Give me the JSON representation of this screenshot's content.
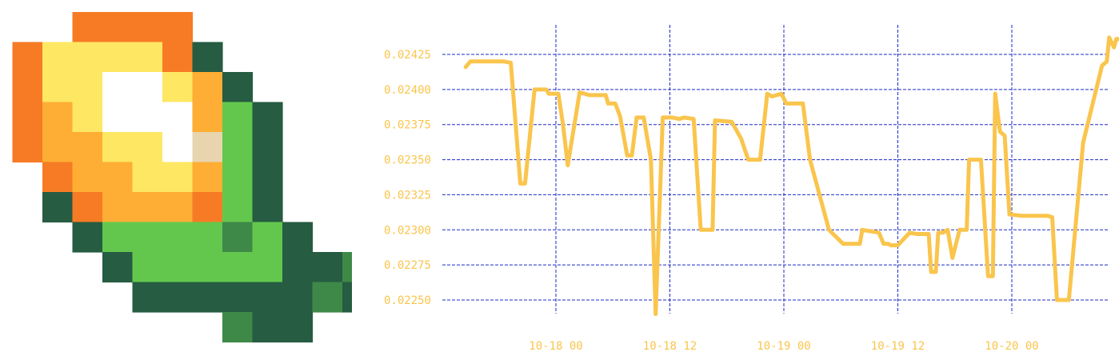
{
  "logo": {
    "icon": "pixel-corn-icon",
    "palette": {
      "o": "#f77b25",
      "y": "#fee762",
      "w": "#ffffff",
      "a": "#feae34",
      "c": "#e8d5b0",
      "g": "#63c74d",
      "d": "#265c42",
      "m": "#3e8948"
    },
    "grid": [
      "...oooo.....",
      ".oyyyyod....",
      ".oyywwyad...",
      ".oaywwwagd..",
      ".oaayywcgd..",
      "..oaayyagd..",
      "..doaaaogd..",
      "...dggggmgd.",
      "....dgggggddm",
      ".....ddddddmd",
      "........mdd.."
    ]
  },
  "chart_data": {
    "type": "line",
    "title": "",
    "xlabel": "",
    "ylabel": "",
    "line_color": "#fac54d",
    "grid_color": "#1d2bc6",
    "label_color": "#fac54d",
    "grid": true,
    "ylim": [
      0.02238,
      0.0245
    ],
    "xlim": [
      "2023-10-17 00:00",
      "2023-10-20 09:00"
    ],
    "x_ticks": [
      {
        "t": "2023-10-18 00:00",
        "label": "10-18 00"
      },
      {
        "t": "2023-10-18 12:00",
        "label": "10-18 12"
      },
      {
        "t": "2023-10-19 00:00",
        "label": "10-19 00"
      },
      {
        "t": "2023-10-19 12:00",
        "label": "10-19 12"
      },
      {
        "t": "2023-10-20 00:00",
        "label": "10-20 00"
      }
    ],
    "y_ticks": [
      {
        "v": 0.0225,
        "label": "0.02250"
      },
      {
        "v": 0.02275,
        "label": "0.02275"
      },
      {
        "v": 0.023,
        "label": "0.02300"
      },
      {
        "v": 0.02325,
        "label": "0.02325"
      },
      {
        "v": 0.0235,
        "label": "0.02350"
      },
      {
        "v": 0.02375,
        "label": "0.02375"
      },
      {
        "v": 0.024,
        "label": "0.02400"
      },
      {
        "v": 0.02425,
        "label": "0.02425"
      }
    ],
    "series": [
      {
        "points": [
          [
            "2023-10-17 14:30",
            0.02416
          ],
          [
            "2023-10-17 15:00",
            0.0242
          ],
          [
            "2023-10-17 18:30",
            0.0242
          ],
          [
            "2023-10-17 19:15",
            0.02419
          ],
          [
            "2023-10-17 20:15",
            0.02333
          ],
          [
            "2023-10-17 20:45",
            0.02333
          ],
          [
            "2023-10-17 21:45",
            0.024
          ],
          [
            "2023-10-17 23:00",
            0.024
          ],
          [
            "2023-10-17 23:15",
            0.02397
          ],
          [
            "2023-10-18 00:15",
            0.02397
          ],
          [
            "2023-10-18 00:45",
            0.02375
          ],
          [
            "2023-10-18 01:15",
            0.02346
          ],
          [
            "2023-10-18 02:30",
            0.02398
          ],
          [
            "2023-10-18 03:30",
            0.02396
          ],
          [
            "2023-10-18 05:15",
            0.02396
          ],
          [
            "2023-10-18 05:30",
            0.0239
          ],
          [
            "2023-10-18 06:15",
            0.0239
          ],
          [
            "2023-10-18 06:45",
            0.02381
          ],
          [
            "2023-10-18 07:30",
            0.02353
          ],
          [
            "2023-10-18 08:00",
            0.02353
          ],
          [
            "2023-10-18 08:30",
            0.0238
          ],
          [
            "2023-10-18 09:15",
            0.0238
          ],
          [
            "2023-10-18 10:00",
            0.0235
          ],
          [
            "2023-10-18 10:30",
            0.0224
          ],
          [
            "2023-10-18 11:15",
            0.0238
          ],
          [
            "2023-10-18 12:15",
            0.0238
          ],
          [
            "2023-10-18 13:00",
            0.02379
          ],
          [
            "2023-10-18 13:30",
            0.0238
          ],
          [
            "2023-10-18 14:30",
            0.02379
          ],
          [
            "2023-10-18 15:15",
            0.023
          ],
          [
            "2023-10-18 16:30",
            0.023
          ],
          [
            "2023-10-18 16:45",
            0.02378
          ],
          [
            "2023-10-18 18:30",
            0.02377
          ],
          [
            "2023-10-18 19:30",
            0.02365
          ],
          [
            "2023-10-18 19:45",
            0.0236
          ],
          [
            "2023-10-18 20:15",
            0.0235
          ],
          [
            "2023-10-18 21:30",
            0.0235
          ],
          [
            "2023-10-18 22:15",
            0.02397
          ],
          [
            "2023-10-18 22:45",
            0.02395
          ],
          [
            "2023-10-18 23:15",
            0.02396
          ],
          [
            "2023-10-18 23:45",
            0.02397
          ],
          [
            "2023-10-19 00:15",
            0.0239
          ],
          [
            "2023-10-19 02:00",
            0.0239
          ],
          [
            "2023-10-19 02:45",
            0.0235
          ],
          [
            "2023-10-19 04:45",
            0.023
          ],
          [
            "2023-10-19 06:15",
            0.0229
          ],
          [
            "2023-10-19 07:00",
            0.0229
          ],
          [
            "2023-10-19 08:00",
            0.0229
          ],
          [
            "2023-10-19 08:15",
            0.023
          ],
          [
            "2023-10-19 10:00",
            0.02298
          ],
          [
            "2023-10-19 10:30",
            0.0229
          ],
          [
            "2023-10-19 11:00",
            0.0229
          ],
          [
            "2023-10-19 11:15",
            0.02289
          ],
          [
            "2023-10-19 12:00",
            0.02289
          ],
          [
            "2023-10-19 13:15",
            0.02298
          ],
          [
            "2023-10-19 14:00",
            0.02297
          ],
          [
            "2023-10-19 15:15",
            0.02297
          ],
          [
            "2023-10-19 15:30",
            0.0227
          ],
          [
            "2023-10-19 16:00",
            0.0227
          ],
          [
            "2023-10-19 16:15",
            0.02298
          ],
          [
            "2023-10-19 16:45",
            0.02298
          ],
          [
            "2023-10-19 17:15",
            0.023
          ],
          [
            "2023-10-19 17:45",
            0.0228
          ],
          [
            "2023-10-19 18:30",
            0.023
          ],
          [
            "2023-10-19 19:15",
            0.023
          ],
          [
            "2023-10-19 19:30",
            0.0235
          ],
          [
            "2023-10-19 20:45",
            0.0235
          ],
          [
            "2023-10-19 21:30",
            0.02267
          ],
          [
            "2023-10-19 22:00",
            0.02267
          ],
          [
            "2023-10-19 22:15",
            0.02397
          ],
          [
            "2023-10-19 22:45",
            0.0237
          ],
          [
            "2023-10-19 23:15",
            0.02367
          ],
          [
            "2023-10-19 23:45",
            0.02311
          ],
          [
            "2023-10-20 01:00",
            0.0231
          ],
          [
            "2023-10-20 03:30",
            0.0231
          ],
          [
            "2023-10-20 03:45",
            0.0231
          ],
          [
            "2023-10-20 04:15",
            0.02309
          ],
          [
            "2023-10-20 04:45",
            0.0225
          ],
          [
            "2023-10-20 06:00",
            0.0225
          ],
          [
            "2023-10-20 07:30",
            0.02362
          ],
          [
            "2023-10-20 09:30",
            0.02417
          ],
          [
            "2023-10-20 10:00",
            0.0242
          ],
          [
            "2023-10-20 10:15",
            0.02437
          ],
          [
            "2023-10-20 10:45",
            0.0243
          ],
          [
            "2023-10-20 11:00",
            0.02436
          ],
          [
            "2023-10-20 11:45",
            0.02436
          ],
          [
            "2023-10-20 12:15",
            0.02395
          ]
        ]
      }
    ]
  }
}
